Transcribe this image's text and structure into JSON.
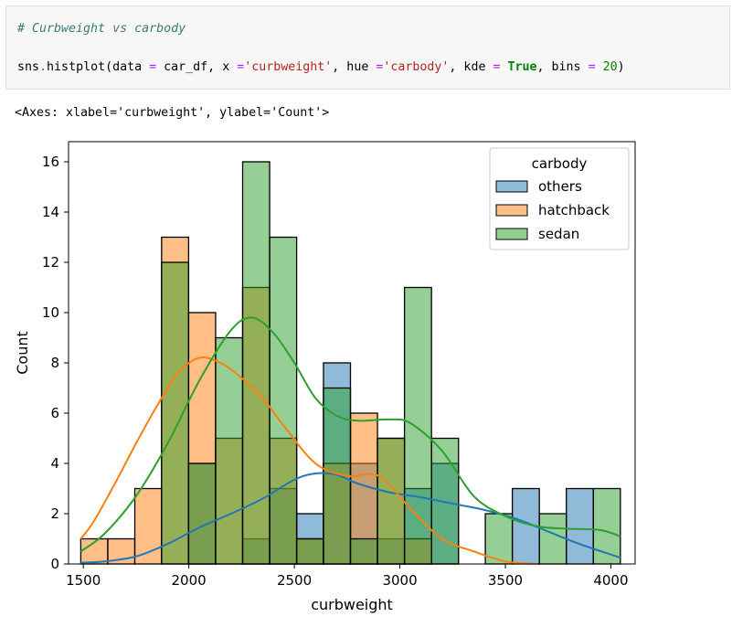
{
  "code_cell": {
    "comment": "# Curbweight vs carbody",
    "call": {
      "prefix": "sns",
      "dot": ".",
      "func": "histplot(data ",
      "eq1": "=",
      "arg1": " car_df, x ",
      "eq2": "=",
      "str1": "'curbweight'",
      "arg2": ", hue ",
      "eq3": "=",
      "str2": "'carbody'",
      "arg3": ", kde ",
      "eq4": "=",
      "kw1": " True",
      "arg4": ", bins ",
      "eq5": "=",
      "num1": " 20",
      "close": ")"
    }
  },
  "output_text": "<Axes: xlabel='curbweight', ylabel='Count'>",
  "colors": {
    "others": "#1f77b4",
    "hatchback": "#ff7f0e",
    "sedan": "#2ca02c"
  },
  "chart_data": {
    "type": "bar",
    "title": "",
    "xlabel": "curbweight",
    "ylabel": "Count",
    "xlim": [
      1430,
      4115
    ],
    "ylim": [
      0,
      16.8
    ],
    "xticks": [
      "1500",
      "2000",
      "2500",
      "3000",
      "3500",
      "4000"
    ],
    "yticks": [
      "0",
      "2",
      "4",
      "6",
      "8",
      "10",
      "12",
      "14",
      "16"
    ],
    "bin_edges": [
      1488,
      1616,
      1744,
      1871,
      1999,
      2127,
      2255,
      2383,
      2511,
      2638,
      2766,
      2894,
      3022,
      3150,
      3278,
      3405,
      3533,
      3661,
      3789,
      3917,
      4045
    ],
    "legend": {
      "title": "carbody",
      "placement": "top-right"
    },
    "grid": false,
    "series": [
      {
        "name": "others",
        "values": [
          0,
          0,
          0,
          0,
          4,
          0,
          1,
          3,
          2,
          8,
          4,
          1,
          3,
          4,
          0,
          0,
          3,
          0,
          3,
          0
        ],
        "kde_x": [
          1488,
          1600,
          1750,
          1900,
          2050,
          2200,
          2350,
          2500,
          2600,
          2700,
          2800,
          2950,
          3100,
          3250,
          3400,
          3550,
          3700,
          3850,
          4045
        ],
        "kde_y": [
          0.05,
          0.1,
          0.3,
          0.8,
          1.45,
          2.0,
          2.6,
          3.35,
          3.6,
          3.55,
          3.2,
          2.85,
          2.65,
          2.4,
          2.15,
          1.8,
          1.3,
          0.8,
          0.25
        ]
      },
      {
        "name": "hatchback",
        "values": [
          1,
          1,
          3,
          13,
          10,
          5,
          11,
          5,
          1,
          4,
          6,
          5,
          1,
          0,
          0,
          0,
          0,
          0,
          0,
          0
        ],
        "kde_x": [
          1488,
          1550,
          1650,
          1750,
          1850,
          1950,
          2050,
          2150,
          2250,
          2350,
          2450,
          2600,
          2750,
          2900,
          3050,
          3200,
          3350,
          3500,
          3650
        ],
        "kde_y": [
          1.0,
          1.7,
          3.2,
          4.8,
          6.3,
          7.6,
          8.2,
          8.0,
          7.4,
          6.6,
          5.5,
          4.0,
          3.5,
          3.5,
          2.2,
          1.0,
          0.5,
          0.1,
          0.0
        ]
      },
      {
        "name": "sedan",
        "values": [
          0,
          0,
          0,
          12,
          4,
          9,
          16,
          13,
          1,
          7,
          1,
          5,
          11,
          5,
          0,
          2,
          0,
          2,
          0,
          3
        ],
        "kde_x": [
          1488,
          1600,
          1750,
          1900,
          2050,
          2200,
          2300,
          2400,
          2500,
          2600,
          2700,
          2800,
          2950,
          3050,
          3200,
          3350,
          3500,
          3650,
          3800,
          3950,
          4045
        ],
        "kde_y": [
          0.5,
          1.2,
          2.7,
          4.8,
          7.3,
          9.3,
          9.8,
          9.2,
          8.0,
          6.6,
          5.9,
          5.7,
          5.75,
          5.6,
          4.5,
          2.7,
          1.9,
          1.5,
          1.4,
          1.35,
          1.1
        ]
      }
    ]
  }
}
